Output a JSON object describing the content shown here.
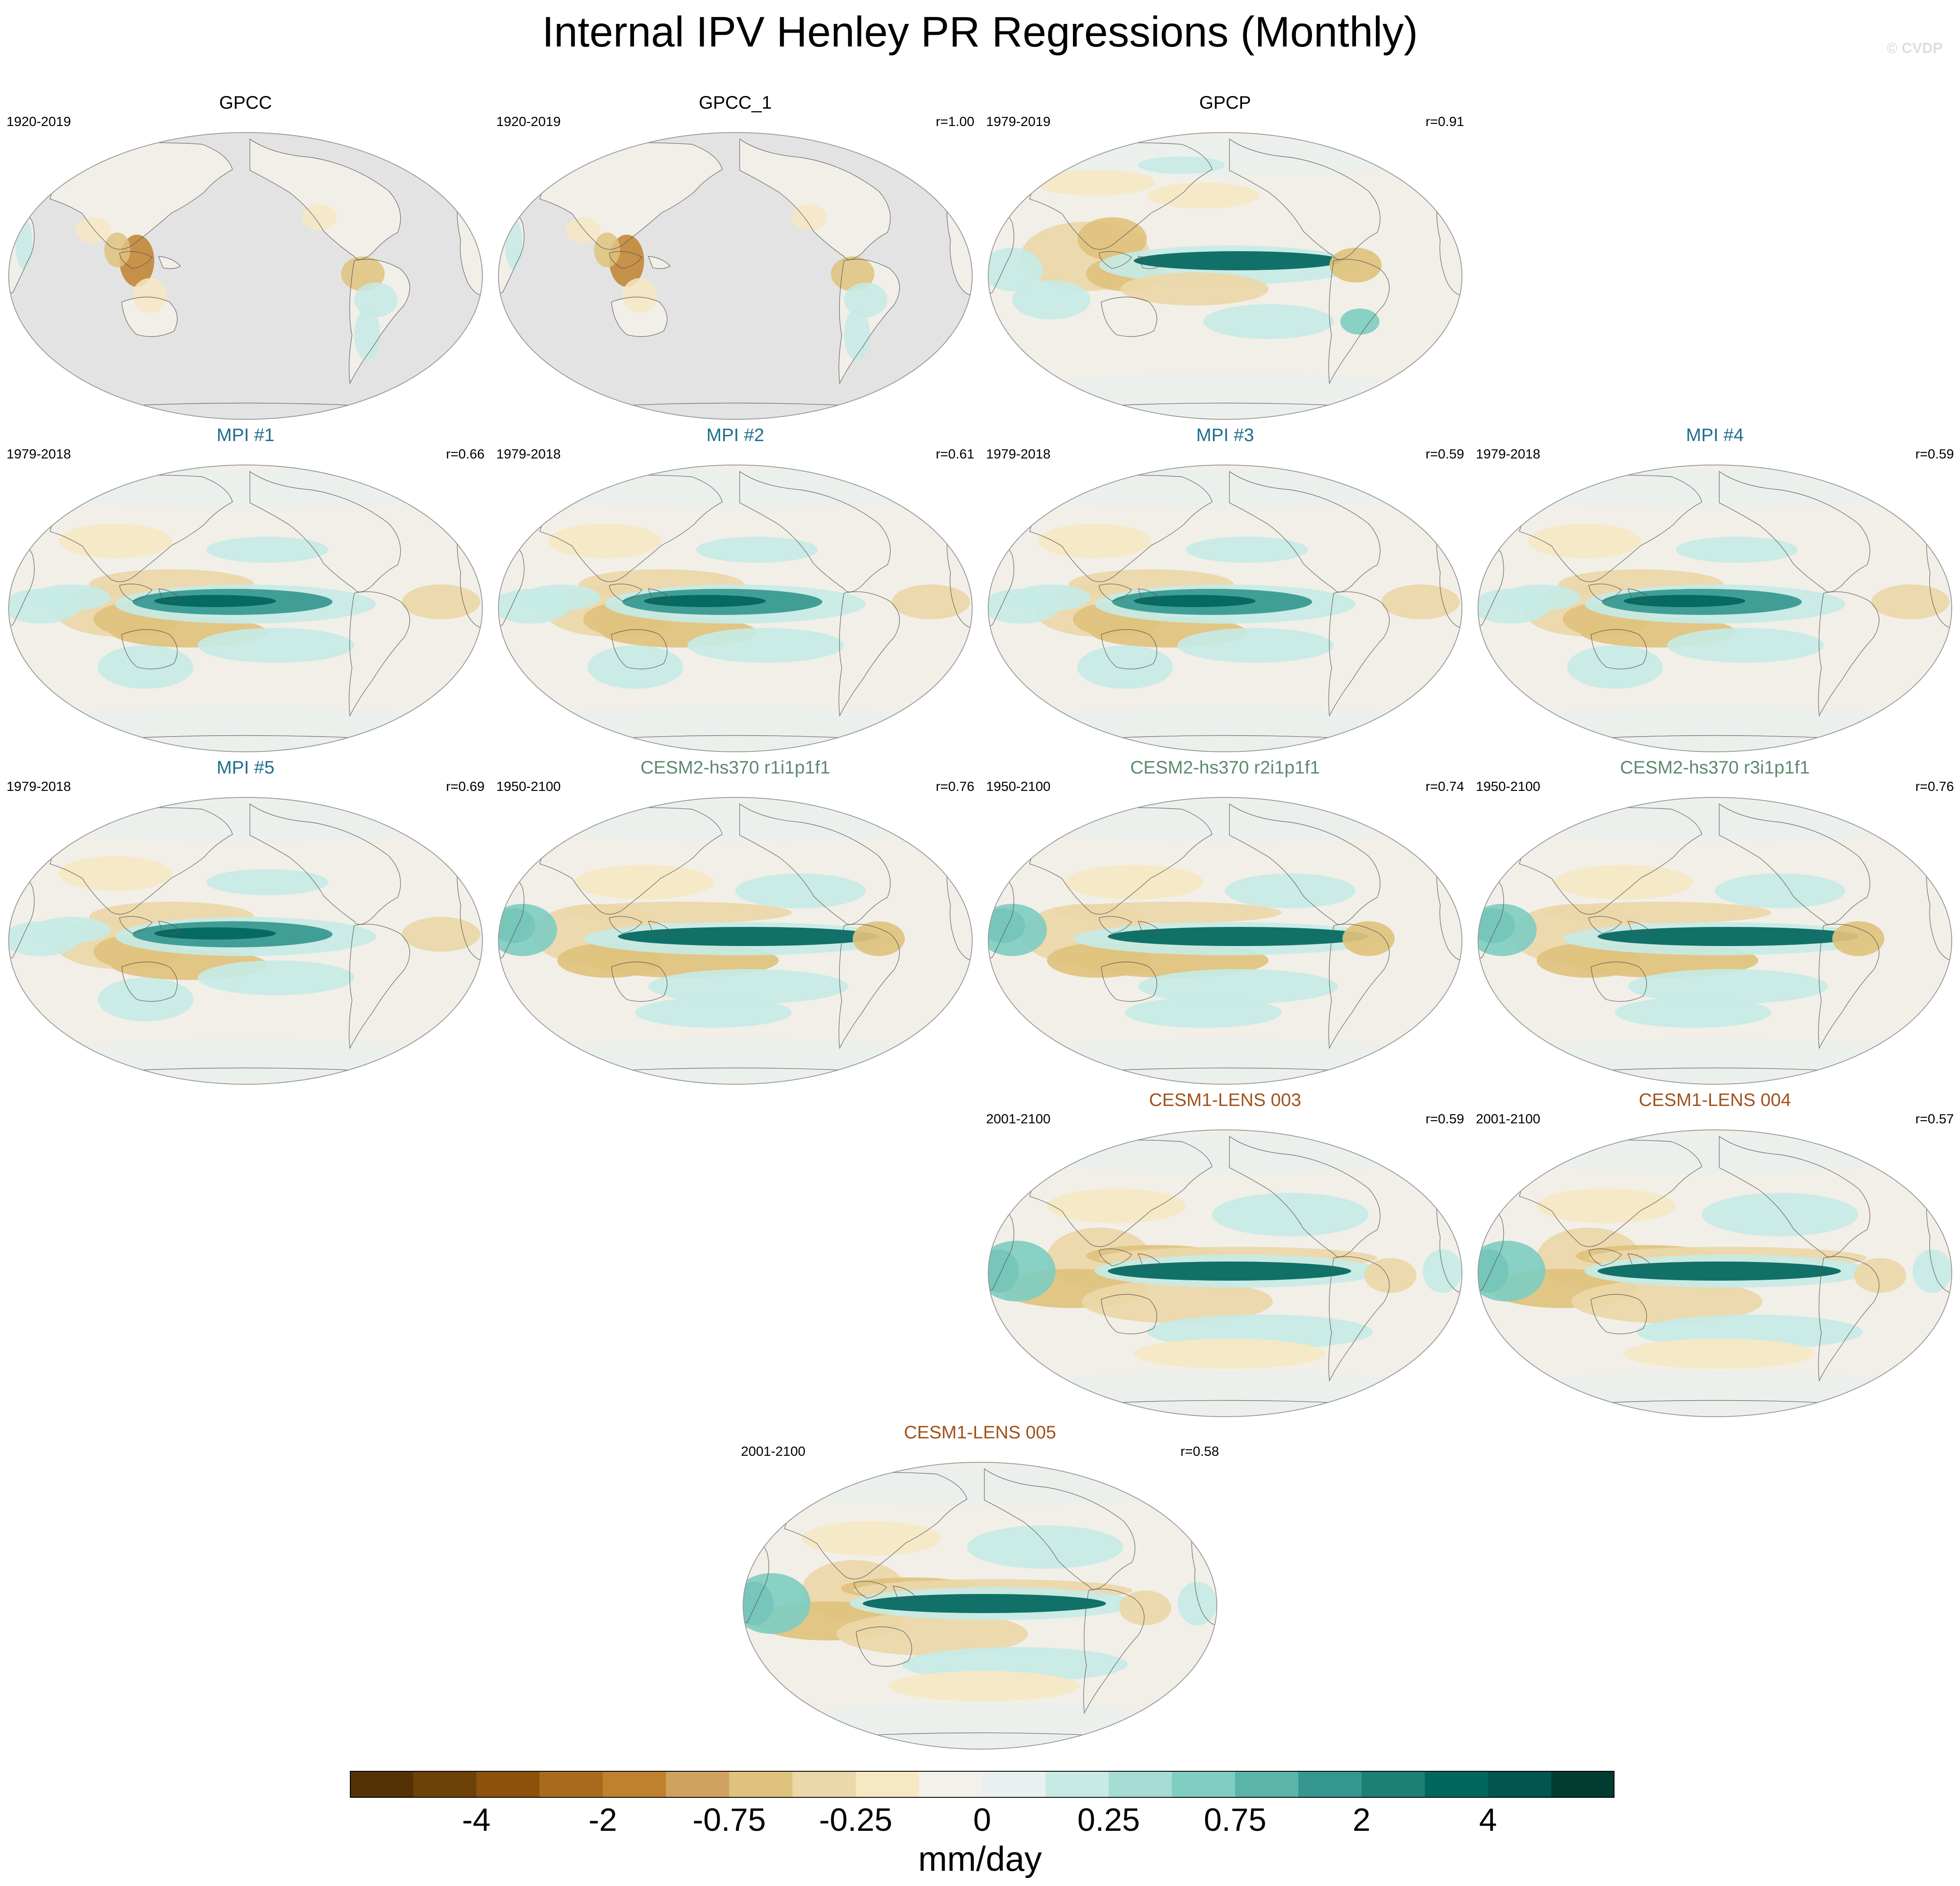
{
  "title": "Internal IPV Henley PR Regressions (Monthly)",
  "watermark": "© CVDP",
  "colors": {
    "obs_title": "#000000",
    "mpi_title": "#1f6e8c",
    "cesm2_title": "#5d8a6e",
    "cesm1_title": "#a0521c",
    "missing_land_mask": "#e3e3e3",
    "ocean_near_zero": "#f1efe8",
    "coastline": "#555555"
  },
  "panels": [
    {
      "id": "gpcc",
      "title": "GPCC",
      "group": "obs",
      "period": "1920-2019",
      "r": "",
      "pattern": "land_only"
    },
    {
      "id": "gpcc-1",
      "title": "GPCC_1",
      "group": "obs",
      "period": "1920-2019",
      "r": "r=1.00",
      "pattern": "land_only"
    },
    {
      "id": "gpcp",
      "title": "GPCP",
      "group": "obs",
      "period": "1979-2019",
      "r": "r=0.91",
      "pattern": "obs_global"
    },
    {
      "id": "mpi-1",
      "title": "MPI #1",
      "group": "mpi",
      "period": "1979-2018",
      "r": "r=0.66",
      "pattern": "mpi"
    },
    {
      "id": "mpi-2",
      "title": "MPI #2",
      "group": "mpi",
      "period": "1979-2018",
      "r": "r=0.61",
      "pattern": "mpi"
    },
    {
      "id": "mpi-3",
      "title": "MPI #3",
      "group": "mpi",
      "period": "1979-2018",
      "r": "r=0.59",
      "pattern": "mpi"
    },
    {
      "id": "mpi-4",
      "title": "MPI #4",
      "group": "mpi",
      "period": "1979-2018",
      "r": "r=0.59",
      "pattern": "mpi"
    },
    {
      "id": "mpi-5",
      "title": "MPI #5",
      "group": "mpi",
      "period": "1979-2018",
      "r": "r=0.69",
      "pattern": "mpi"
    },
    {
      "id": "cesm2-r1",
      "title": "CESM2-hs370 r1i1p1f1",
      "group": "cesm2",
      "period": "1950-2100",
      "r": "r=0.76",
      "pattern": "cesm2"
    },
    {
      "id": "cesm2-r2",
      "title": "CESM2-hs370 r2i1p1f1",
      "group": "cesm2",
      "period": "1950-2100",
      "r": "r=0.74",
      "pattern": "cesm2"
    },
    {
      "id": "cesm2-r3",
      "title": "CESM2-hs370 r3i1p1f1",
      "group": "cesm2",
      "period": "1950-2100",
      "r": "r=0.76",
      "pattern": "cesm2"
    },
    {
      "id": "cesm1-003",
      "title": "CESM1-LENS 003",
      "group": "cesm1",
      "period": "2001-2100",
      "r": "r=0.59",
      "pattern": "cesm1"
    },
    {
      "id": "cesm1-004",
      "title": "CESM1-LENS 004",
      "group": "cesm1",
      "period": "2001-2100",
      "r": "r=0.57",
      "pattern": "cesm1"
    },
    {
      "id": "cesm1-005",
      "title": "CESM1-LENS 005",
      "group": "cesm1",
      "period": "2001-2100",
      "r": "r=0.58",
      "pattern": "cesm1"
    }
  ],
  "colorbar": {
    "units": "mm/day",
    "tick_labels": [
      "-4",
      "-2",
      "-0.75",
      "-0.25",
      "0",
      "0.25",
      "0.75",
      "2",
      "4"
    ],
    "colors": [
      "#543005",
      "#6d4108",
      "#8c510a",
      "#a86b1e",
      "#bf812d",
      "#d1a25f",
      "#dfc27d",
      "#ebd7a8",
      "#f6e8c3",
      "#f3f1eb",
      "#e8f1ef",
      "#c7eae5",
      "#a5dcd4",
      "#80cdc1",
      "#5ab4a8",
      "#35978f",
      "#1d7f76",
      "#01665e",
      "#00554e",
      "#003c30"
    ]
  }
}
